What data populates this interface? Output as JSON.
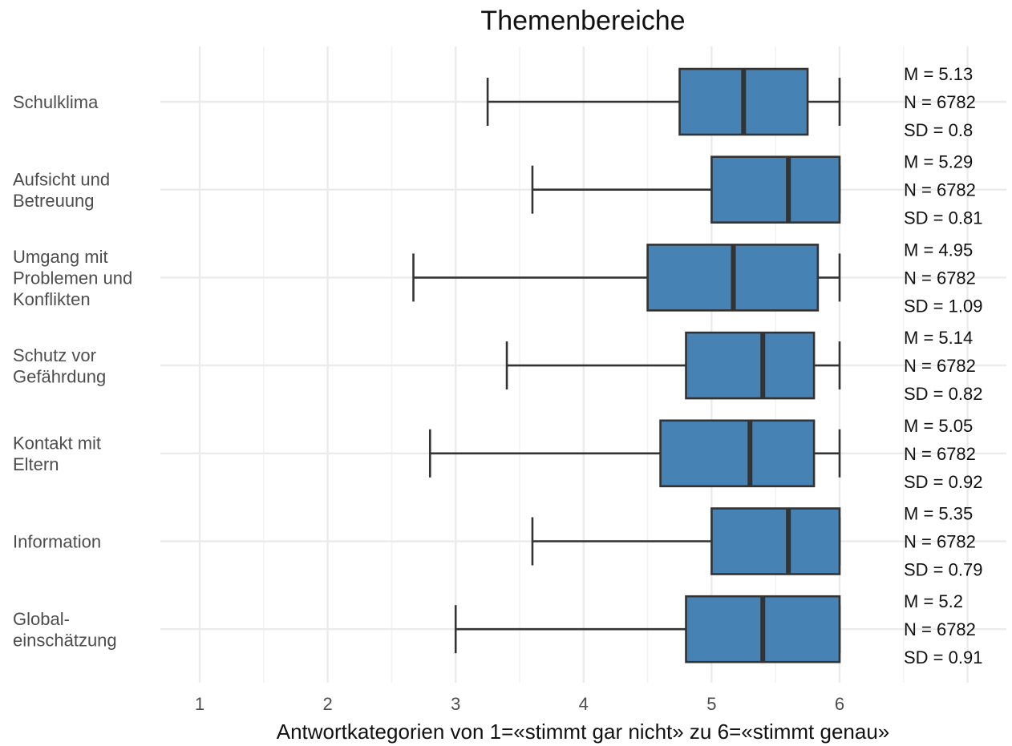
{
  "chart_data": {
    "type": "boxplot",
    "orientation": "horizontal",
    "title": "Themenbereiche",
    "xlabel": "Antwortkategorien von 1=«stimmt gar nicht» zu 6=«stimmt genau»",
    "ylabel": "",
    "xlim": [
      0.9,
      7.0
    ],
    "xticks": [
      "1",
      "2",
      "3",
      "4",
      "5",
      "6"
    ],
    "grid": true,
    "box_color": "#4682B4",
    "line_color": "#333333",
    "categories": [
      {
        "label": [
          "Schulklima"
        ],
        "whisker_low": 3.25,
        "q1": 4.75,
        "median": 5.25,
        "q3": 5.75,
        "whisker_high": 6.0,
        "stats": [
          "M = 5.13",
          "N = 6782",
          "SD = 0.8"
        ]
      },
      {
        "label": [
          "Aufsicht und",
          "Betreuung"
        ],
        "whisker_low": 3.6,
        "q1": 5.0,
        "median": 5.6,
        "q3": 6.0,
        "whisker_high": 6.0,
        "stats": [
          "M = 5.29",
          "N = 6782",
          "SD = 0.81"
        ]
      },
      {
        "label": [
          "Umgang mit",
          "Problemen und",
          "Konflikten"
        ],
        "whisker_low": 2.67,
        "q1": 4.5,
        "median": 5.17,
        "q3": 5.83,
        "whisker_high": 6.0,
        "stats": [
          "M = 4.95",
          "N = 6782",
          "SD = 1.09"
        ]
      },
      {
        "label": [
          "Schutz vor",
          "Gefährdung"
        ],
        "whisker_low": 3.4,
        "q1": 4.8,
        "median": 5.4,
        "q3": 5.8,
        "whisker_high": 6.0,
        "stats": [
          "M = 5.14",
          "N = 6782",
          "SD = 0.82"
        ]
      },
      {
        "label": [
          "Kontakt mit",
          "Eltern"
        ],
        "whisker_low": 2.8,
        "q1": 4.6,
        "median": 5.3,
        "q3": 5.8,
        "whisker_high": 6.0,
        "stats": [
          "M = 5.05",
          "N = 6782",
          "SD = 0.92"
        ]
      },
      {
        "label": [
          "Information"
        ],
        "whisker_low": 3.6,
        "q1": 5.0,
        "median": 5.6,
        "q3": 6.0,
        "whisker_high": 6.0,
        "stats": [
          "M = 5.35",
          "N = 6782",
          "SD = 0.79"
        ]
      },
      {
        "label": [
          "Global-",
          "einschätzung"
        ],
        "whisker_low": 3.0,
        "q1": 4.8,
        "median": 5.4,
        "q3": 6.0,
        "whisker_high": 6.0,
        "stats": [
          "M = 5.2",
          "N = 6782",
          "SD = 0.91"
        ]
      }
    ]
  }
}
